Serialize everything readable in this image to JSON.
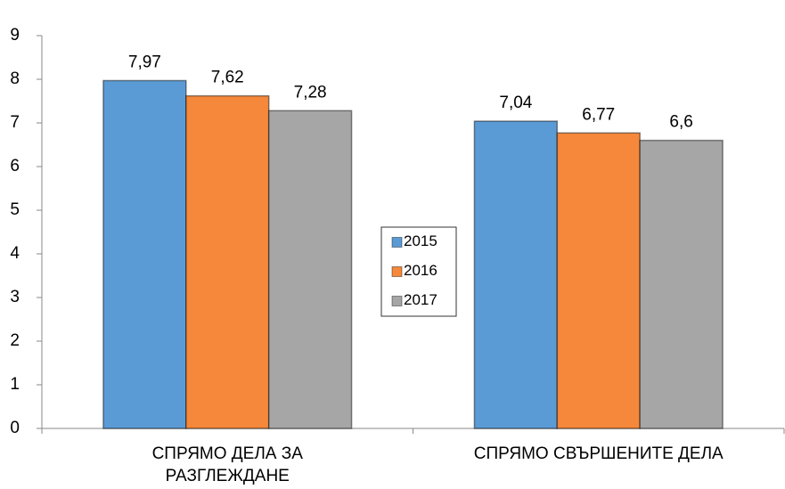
{
  "chart_data": {
    "type": "bar",
    "categories": [
      "СПРЯМО ДЕЛА ЗА РАЗГЛЕЖДАНЕ",
      "СПРЯМО СВЪРШЕНИТЕ ДЕЛА"
    ],
    "series": [
      {
        "name": "2015",
        "color": "#5b9bd5",
        "values": [
          7.97,
          7.04
        ],
        "value_labels": [
          "7,97",
          "7,04"
        ]
      },
      {
        "name": "2016",
        "color": "#f5883a",
        "values": [
          7.62,
          6.77
        ],
        "value_labels": [
          "7,62",
          "6,77"
        ]
      },
      {
        "name": "2017",
        "color": "#a6a6a6",
        "values": [
          7.28,
          6.6
        ],
        "value_labels": [
          "7,28",
          "6,6"
        ]
      }
    ],
    "ylim": [
      0,
      9
    ],
    "yticks": [
      0,
      1,
      2,
      3,
      4,
      5,
      6,
      7,
      8,
      9
    ],
    "grid": false,
    "legend": "center"
  }
}
